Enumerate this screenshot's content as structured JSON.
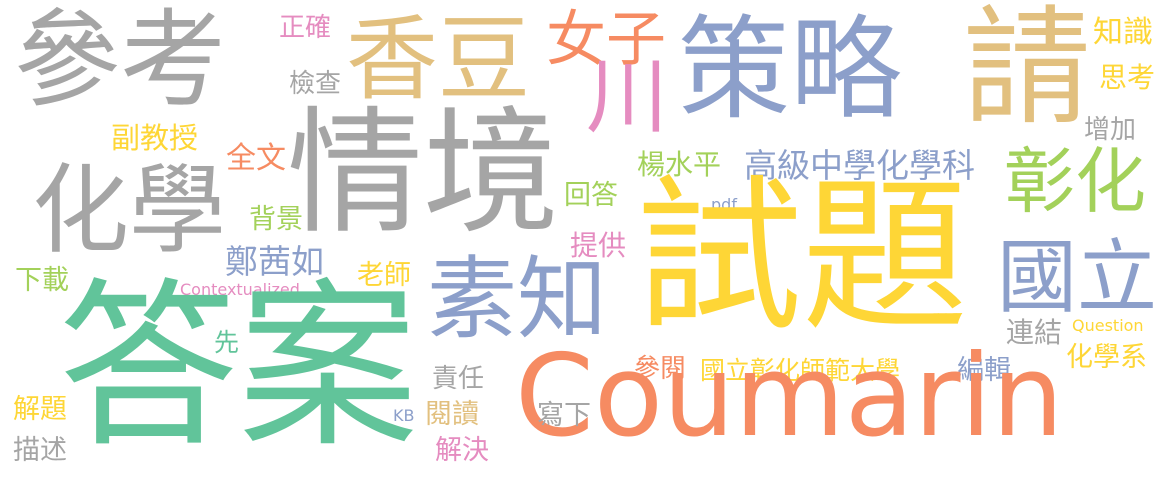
{
  "palette": {
    "gray": "#a5a5a5",
    "tan": "#e2c07f",
    "orange": "#f68b62",
    "blue": "#8c9fca",
    "pink": "#e58cc0",
    "green": "#61c49a",
    "lime": "#a3d15a",
    "yellow": "#fed636"
  },
  "words": [
    {
      "id": "cankao",
      "text": "參考",
      "color": "gray"
    },
    {
      "id": "xiangdou",
      "text": "香豆",
      "color": "tan"
    },
    {
      "id": "nuzi",
      "text": "女子",
      "color": "orange"
    },
    {
      "id": "zhengque",
      "text": "正確",
      "color": "pink"
    },
    {
      "id": "celue",
      "text": "策略",
      "color": "blue"
    },
    {
      "id": "qing",
      "text": "請",
      "color": "tan"
    },
    {
      "id": "zhishi",
      "text": "知識",
      "color": "yellow"
    },
    {
      "id": "sikao",
      "text": "思考",
      "color": "yellow"
    },
    {
      "id": "jiancha",
      "text": "檢查",
      "color": "gray"
    },
    {
      "id": "chuan",
      "text": "川",
      "color": "pink"
    },
    {
      "id": "fujiaoshou",
      "text": "副教授",
      "color": "yellow"
    },
    {
      "id": "qingjing",
      "text": "情境",
      "color": "gray"
    },
    {
      "id": "quanwen",
      "text": "全文",
      "color": "orange"
    },
    {
      "id": "zengjia",
      "text": "增加",
      "color": "gray"
    },
    {
      "id": "huaxue",
      "text": "化學",
      "color": "gray"
    },
    {
      "id": "yangshuiping",
      "text": "楊水平",
      "color": "lime"
    },
    {
      "id": "gaoji",
      "text": "高級中學化學科",
      "color": "blue"
    },
    {
      "id": "zhanghua",
      "text": "彰化",
      "color": "lime"
    },
    {
      "id": "huida",
      "text": "回答",
      "color": "lime"
    },
    {
      "id": "pdf",
      "text": "pdf",
      "color": "blue"
    },
    {
      "id": "beijing",
      "text": "背景",
      "color": "lime"
    },
    {
      "id": "shiti",
      "text": "試題",
      "color": "yellow"
    },
    {
      "id": "tigong",
      "text": "提供",
      "color": "pink"
    },
    {
      "id": "zhengqianru",
      "text": "鄭茜如",
      "color": "blue"
    },
    {
      "id": "suzhi",
      "text": "素知",
      "color": "blue"
    },
    {
      "id": "guoli",
      "text": "國立",
      "color": "blue"
    },
    {
      "id": "xiazai",
      "text": "下載",
      "color": "lime"
    },
    {
      "id": "laoshi",
      "text": "老師",
      "color": "yellow"
    },
    {
      "id": "contextualized",
      "text": "Contextualized",
      "color": "pink"
    },
    {
      "id": "daan",
      "text": "答案",
      "color": "green"
    },
    {
      "id": "xian",
      "text": "先",
      "color": "green"
    },
    {
      "id": "lianjie",
      "text": "連結",
      "color": "gray"
    },
    {
      "id": "question",
      "text": "Question",
      "color": "yellow"
    },
    {
      "id": "huaxuexi",
      "text": "化學系",
      "color": "yellow"
    },
    {
      "id": "canyue",
      "text": "參閱",
      "color": "orange"
    },
    {
      "id": "guolizhanghua",
      "text": "國立彰化師範大學",
      "color": "yellow"
    },
    {
      "id": "bianji",
      "text": "編輯",
      "color": "blue"
    },
    {
      "id": "zeren",
      "text": "責任",
      "color": "gray"
    },
    {
      "id": "coumarin",
      "text": "Coumarin",
      "color": "orange"
    },
    {
      "id": "jieti",
      "text": "解題",
      "color": "yellow"
    },
    {
      "id": "kb",
      "text": "KB",
      "color": "blue"
    },
    {
      "id": "yuedu",
      "text": "閱讀",
      "color": "tan"
    },
    {
      "id": "xiexia",
      "text": "寫下",
      "color": "gray"
    },
    {
      "id": "miaoshu",
      "text": "描述",
      "color": "gray"
    },
    {
      "id": "jiejue",
      "text": "解決",
      "color": "pink"
    }
  ]
}
